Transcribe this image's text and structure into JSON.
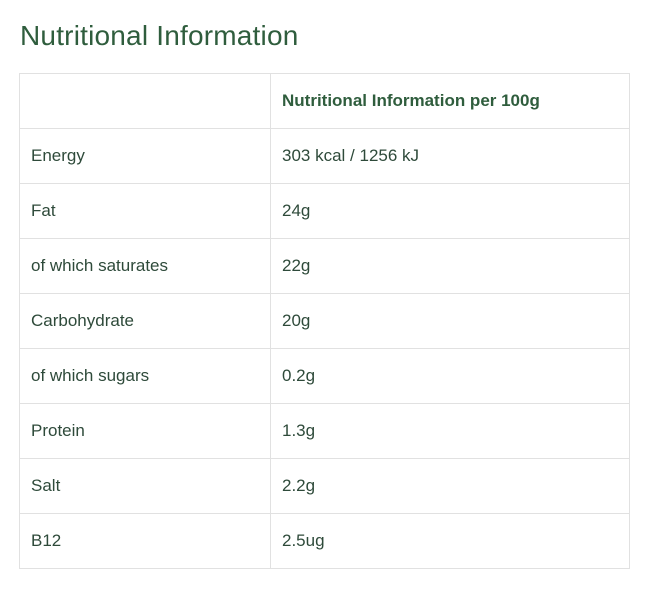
{
  "page": {
    "title": "Nutritional Information"
  },
  "table": {
    "header": {
      "name": "",
      "value": "Nutritional Information per 100g"
    },
    "rows": [
      {
        "name": "Energy",
        "value": "303 kcal / 1256 kJ"
      },
      {
        "name": "Fat",
        "value": "24g"
      },
      {
        "name": "of which saturates",
        "value": "22g"
      },
      {
        "name": "Carbohydrate",
        "value": "20g"
      },
      {
        "name": "of which sugars",
        "value": "0.2g"
      },
      {
        "name": "Protein",
        "value": "1.3g"
      },
      {
        "name": "Salt",
        "value": "2.2g"
      },
      {
        "name": "B12",
        "value": "2.5ug"
      }
    ]
  },
  "colors": {
    "title": "#2f5d3d",
    "text": "#2e4a3a",
    "border": "#e1e1e1",
    "background": "#ffffff"
  }
}
